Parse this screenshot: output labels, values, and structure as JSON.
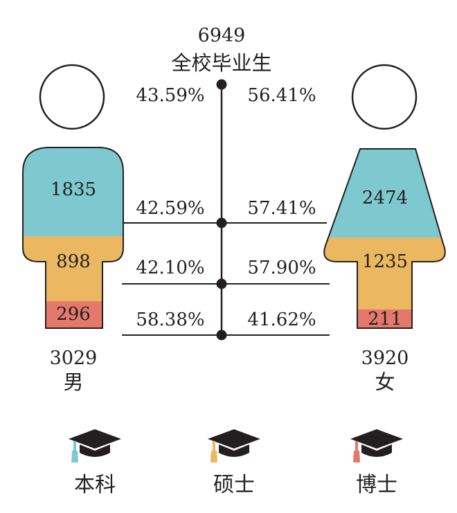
{
  "total": {
    "count": "6949",
    "label": "全校毕业生"
  },
  "male": {
    "count": "3029",
    "label": "男",
    "undergrad": "1835",
    "master": "898",
    "doctor": "296"
  },
  "female": {
    "count": "3920",
    "label": "女",
    "undergrad": "2474",
    "master": "1235",
    "doctor": "211"
  },
  "ratios": {
    "all": {
      "male": "43.59%",
      "female": "56.41%"
    },
    "undergrad": {
      "male": "42.59%",
      "female": "57.41%"
    },
    "master": {
      "male": "42.10%",
      "female": "57.90%"
    },
    "doctor": {
      "male": "58.38%",
      "female": "41.62%"
    }
  },
  "legend": [
    {
      "label": "本科",
      "color": "#7ec8cf"
    },
    {
      "label": "硕士",
      "color": "#ebb861"
    },
    {
      "label": "博士",
      "color": "#e4796b"
    }
  ],
  "colors": {
    "undergrad": "#7ec8cf",
    "master": "#ebb861",
    "doctor": "#e4796b",
    "ink": "#231f20"
  }
}
